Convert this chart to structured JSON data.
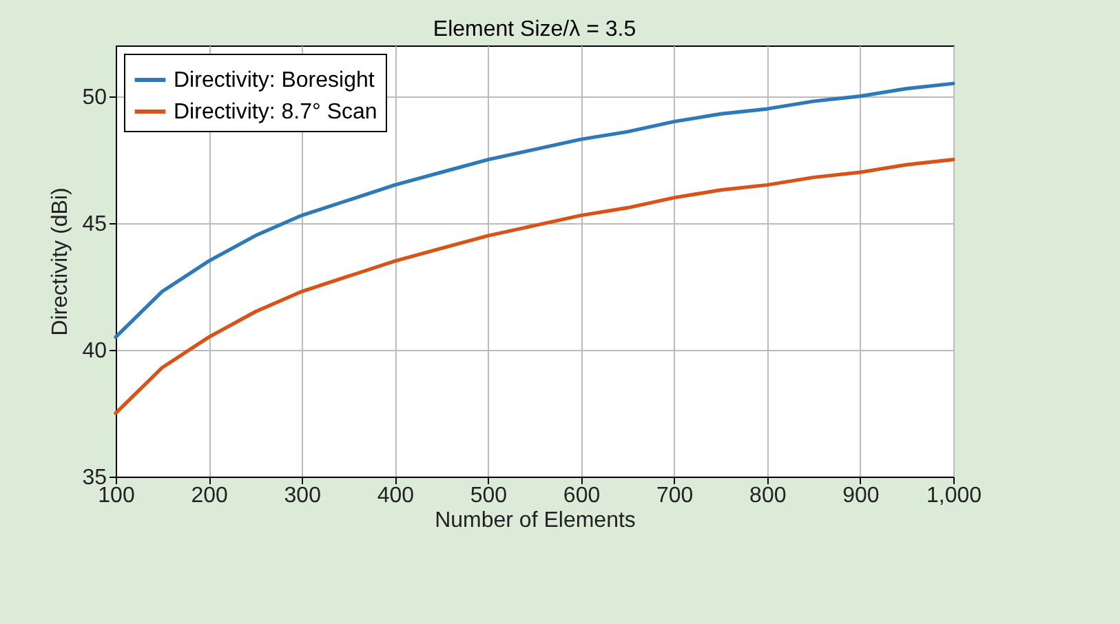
{
  "chart_data": {
    "type": "line",
    "title": "Element Size/λ = 3.5",
    "xlabel": "Number of Elements",
    "ylabel": "Directivity (dBi)",
    "x": [
      100,
      150,
      200,
      250,
      300,
      350,
      400,
      450,
      500,
      550,
      600,
      650,
      700,
      750,
      800,
      850,
      900,
      950,
      1000
    ],
    "series": [
      {
        "name": "Directivity: Boresight",
        "color": "#2e7ab8",
        "values": [
          40.5,
          42.3,
          43.5,
          44.5,
          45.3,
          45.9,
          46.5,
          47.0,
          47.5,
          47.9,
          48.3,
          48.6,
          49.0,
          49.3,
          49.5,
          49.8,
          50.0,
          50.3,
          50.5
        ]
      },
      {
        "name": "Directivity: 8.7° Scan",
        "color": "#d95319",
        "values": [
          37.5,
          39.3,
          40.5,
          41.5,
          42.3,
          42.9,
          43.5,
          44.0,
          44.5,
          44.9,
          45.3,
          45.6,
          46.0,
          46.3,
          46.5,
          46.8,
          47.0,
          47.3,
          47.5
        ]
      }
    ],
    "xlim": [
      100,
      1000
    ],
    "xticks": [
      100,
      200,
      300,
      400,
      500,
      600,
      700,
      800,
      900,
      {
        "value": 1000,
        "label": "1,000"
      }
    ],
    "ylim": [
      35,
      52
    ],
    "yticks": [
      35,
      40,
      45,
      50
    ],
    "grid": true,
    "legend": "top left",
    "marker": "none",
    "line_style": "solid"
  }
}
